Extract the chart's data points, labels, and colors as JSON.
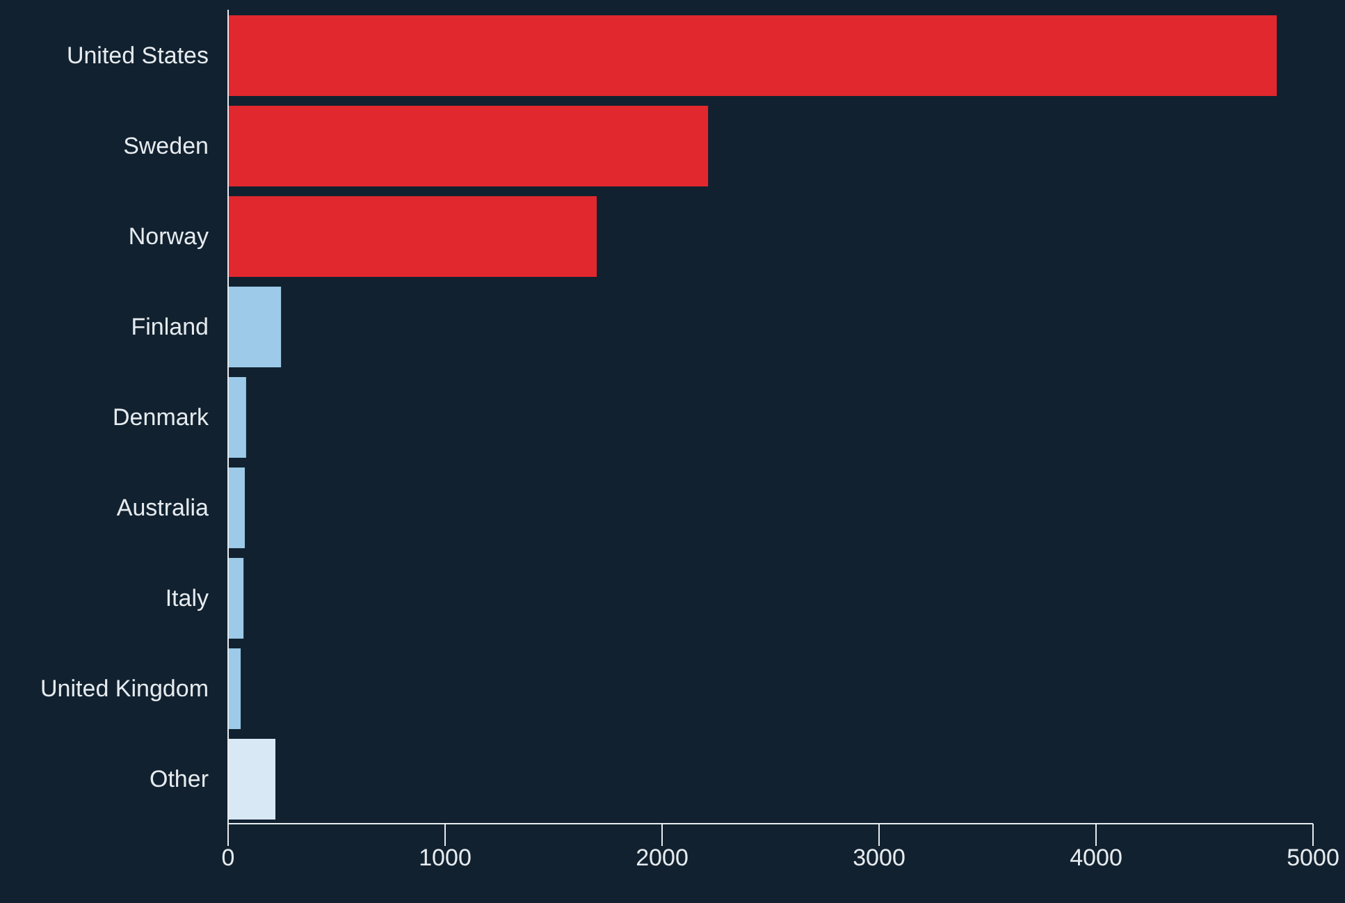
{
  "chart_data": {
    "type": "bar",
    "orientation": "horizontal",
    "categories": [
      "United States",
      "Sweden",
      "Norway",
      "Finland",
      "Denmark",
      "Australia",
      "Italy",
      "United Kingdom",
      "Other"
    ],
    "values": [
      4833,
      2212,
      1699,
      244,
      83,
      77,
      71,
      58,
      218
    ],
    "colors": [
      "#e0282e",
      "#e0282e",
      "#e0282e",
      "#9ccae8",
      "#9ccae8",
      "#9ccae8",
      "#9ccae8",
      "#9ccae8",
      "#d9e8f5"
    ],
    "xlim": [
      0,
      5000
    ],
    "xticks": [
      0,
      1000,
      2000,
      3000,
      4000,
      5000
    ],
    "grid": false
  }
}
